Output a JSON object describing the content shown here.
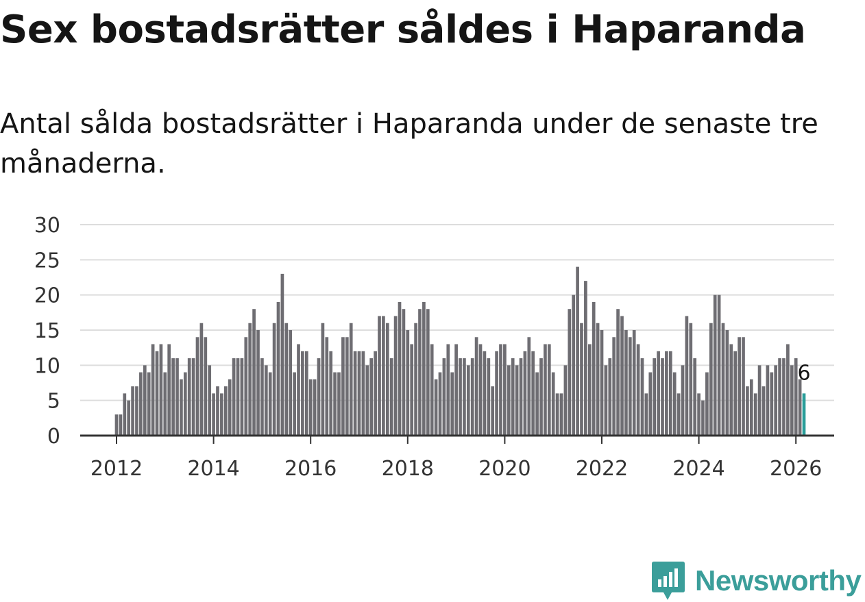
{
  "chart_data": {
    "type": "bar",
    "title": "Sex bostadsrätter såldes i Haparanda",
    "subtitle": "Antal sålda bostadsrätter i Haparanda under de senaste tre månaderna.",
    "xlabel": "",
    "ylabel": "",
    "ylim": [
      0,
      30
    ],
    "yticks": [
      0,
      5,
      10,
      15,
      20,
      25,
      30
    ],
    "xticks": [
      "2012",
      "2014",
      "2016",
      "2018",
      "2020",
      "2022",
      "2024",
      "2026"
    ],
    "x_start": "2012-01",
    "grid": true,
    "values": [
      3,
      3,
      6,
      5,
      7,
      7,
      9,
      10,
      9,
      13,
      12,
      13,
      9,
      13,
      11,
      11,
      8,
      9,
      11,
      11,
      14,
      16,
      14,
      10,
      6,
      7,
      6,
      7,
      8,
      11,
      11,
      11,
      14,
      16,
      18,
      15,
      11,
      10,
      9,
      16,
      19,
      23,
      16,
      15,
      9,
      13,
      12,
      12,
      8,
      8,
      11,
      16,
      14,
      12,
      9,
      9,
      14,
      14,
      16,
      12,
      12,
      12,
      10,
      11,
      12,
      17,
      17,
      16,
      11,
      17,
      19,
      18,
      15,
      13,
      16,
      18,
      19,
      18,
      13,
      8,
      9,
      11,
      13,
      9,
      13,
      11,
      11,
      10,
      11,
      14,
      13,
      12,
      11,
      7,
      12,
      13,
      13,
      10,
      11,
      10,
      11,
      12,
      14,
      12,
      9,
      11,
      13,
      13,
      9,
      6,
      6,
      10,
      18,
      20,
      24,
      16,
      22,
      13,
      19,
      16,
      15,
      10,
      11,
      14,
      18,
      17,
      15,
      14,
      15,
      13,
      11,
      6,
      9,
      11,
      12,
      11,
      12,
      12,
      9,
      6,
      10,
      17,
      16,
      11,
      6,
      5,
      9,
      16,
      20,
      20,
      16,
      15,
      13,
      12,
      14,
      14,
      7,
      8,
      6,
      10,
      7,
      10,
      9,
      10,
      11,
      11,
      13,
      10,
      11,
      8,
      6
    ],
    "highlight": {
      "label": "6",
      "value": 6
    },
    "colors": {
      "bar": "#6e6d72",
      "highlight": "#2a9d99",
      "grid": "#dddddd",
      "axis": "#333333"
    }
  },
  "logo": {
    "text": "Newsworthy",
    "icon": "newsworthy-logo-icon",
    "color": "#3b9e9a"
  }
}
